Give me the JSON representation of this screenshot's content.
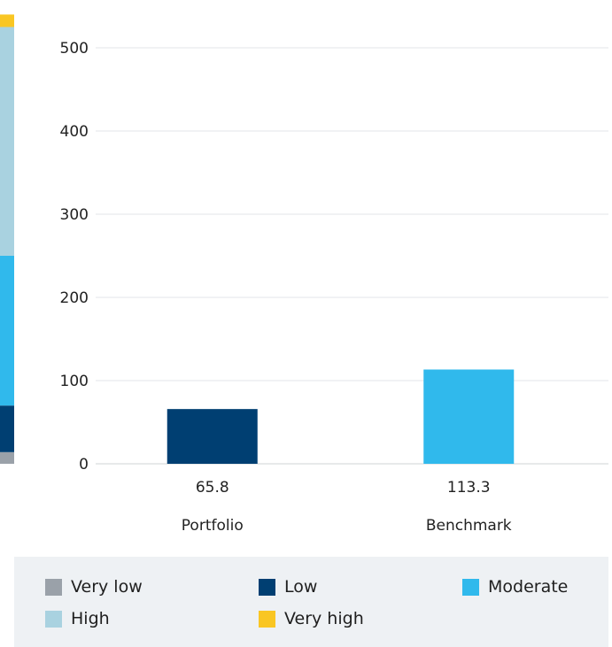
{
  "chart_data": {
    "type": "bar",
    "categories": [
      "Portfolio",
      "Benchmark"
    ],
    "values": [
      65.8,
      113.3
    ],
    "value_labels": [
      "65.8",
      "113.3"
    ],
    "bar_colors": [
      "#003f72",
      "#30b9ec"
    ],
    "ylim": [
      0,
      500
    ],
    "yticks": [
      0,
      100,
      200,
      300,
      400,
      500
    ],
    "grid": true,
    "risk_scale": {
      "bands": [
        {
          "level": "Very low",
          "from": 0,
          "to": 14,
          "color": "#9aa1a9"
        },
        {
          "level": "Low",
          "from": 14,
          "to": 70,
          "color": "#003f72"
        },
        {
          "level": "Moderate",
          "from": 70,
          "to": 250,
          "color": "#30b9ec"
        },
        {
          "level": "High",
          "from": 250,
          "to": 525,
          "color": "#a9d2e0"
        },
        {
          "level": "Very high",
          "from": 525,
          "to": 540,
          "color": "#f9c623"
        }
      ]
    }
  },
  "legend": {
    "placement": "bottom",
    "items": [
      {
        "label": "Very low",
        "color": "#9aa1a9"
      },
      {
        "label": "Low",
        "color": "#003f72"
      },
      {
        "label": "Moderate",
        "color": "#30b9ec"
      },
      {
        "label": "High",
        "color": "#a9d2e0"
      },
      {
        "label": "Very high",
        "color": "#f9c623"
      }
    ]
  }
}
